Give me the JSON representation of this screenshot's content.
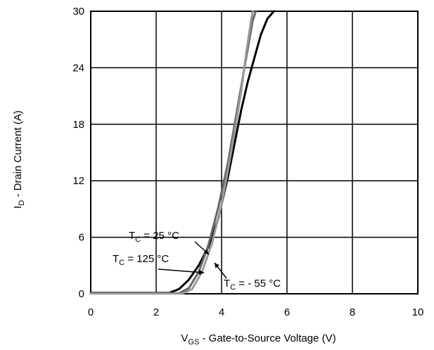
{
  "chart_data": {
    "type": "line",
    "title": "",
    "xlabel": {
      "main": "V",
      "sub": "GS",
      "rest": " - Gate-to-Source Voltage (V)"
    },
    "ylabel": {
      "main": "I",
      "sub": "D",
      "rest": " - Drain Current (A)"
    },
    "xlim": [
      0,
      10
    ],
    "ylim": [
      0,
      30
    ],
    "xticks": [
      "0",
      "2",
      "4",
      "6",
      "8",
      "10"
    ],
    "yticks": [
      "0",
      "6",
      "12",
      "18",
      "24",
      "30"
    ],
    "grid": true,
    "series": [
      {
        "color": "#000000",
        "points": [
          [
            0,
            0.1
          ],
          [
            2.4,
            0.1
          ],
          [
            2.7,
            0.5
          ],
          [
            3.0,
            1.5
          ],
          [
            3.3,
            3.0
          ],
          [
            3.6,
            5.0
          ],
          [
            3.9,
            8.0
          ],
          [
            4.2,
            12.5
          ],
          [
            4.4,
            16.0
          ],
          [
            4.6,
            19.5
          ],
          [
            4.8,
            22.5
          ],
          [
            5.0,
            25.0
          ],
          [
            5.2,
            27.5
          ],
          [
            5.4,
            29.2
          ],
          [
            5.6,
            30
          ]
        ]
      },
      {
        "color": "#666666",
        "points": [
          [
            0,
            0.05
          ],
          [
            2.7,
            0.05
          ],
          [
            3.0,
            0.6
          ],
          [
            3.3,
            2.3
          ],
          [
            3.6,
            5.2
          ],
          [
            3.9,
            9.2
          ],
          [
            4.2,
            14.0
          ],
          [
            4.4,
            18.0
          ],
          [
            4.6,
            22.0
          ],
          [
            4.8,
            26.0
          ],
          [
            4.95,
            29.0
          ],
          [
            5.05,
            30
          ]
        ]
      },
      {
        "color": "#999999",
        "points": [
          [
            0,
            0.02
          ],
          [
            2.8,
            0.02
          ],
          [
            3.1,
            0.5
          ],
          [
            3.4,
            2.3
          ],
          [
            3.7,
            5.3
          ],
          [
            4.0,
            9.5
          ],
          [
            4.2,
            13.2
          ],
          [
            4.4,
            17.2
          ],
          [
            4.6,
            21.5
          ],
          [
            4.75,
            25.5
          ],
          [
            4.9,
            29.0
          ],
          [
            4.95,
            30
          ]
        ]
      }
    ],
    "annotations": [
      {
        "main": "T",
        "sub": "C",
        "rest": " = 25 °C",
        "arrow_to": [
          3.7,
          3.0
        ]
      },
      {
        "main": "T",
        "sub": "C",
        "rest": " = 125 °C",
        "arrow_to": [
          3.5,
          2.4
        ]
      },
      {
        "main": "T",
        "sub": "C",
        "rest": " = - 55 °C",
        "arrow_to": [
          3.85,
          2.2
        ]
      }
    ]
  }
}
